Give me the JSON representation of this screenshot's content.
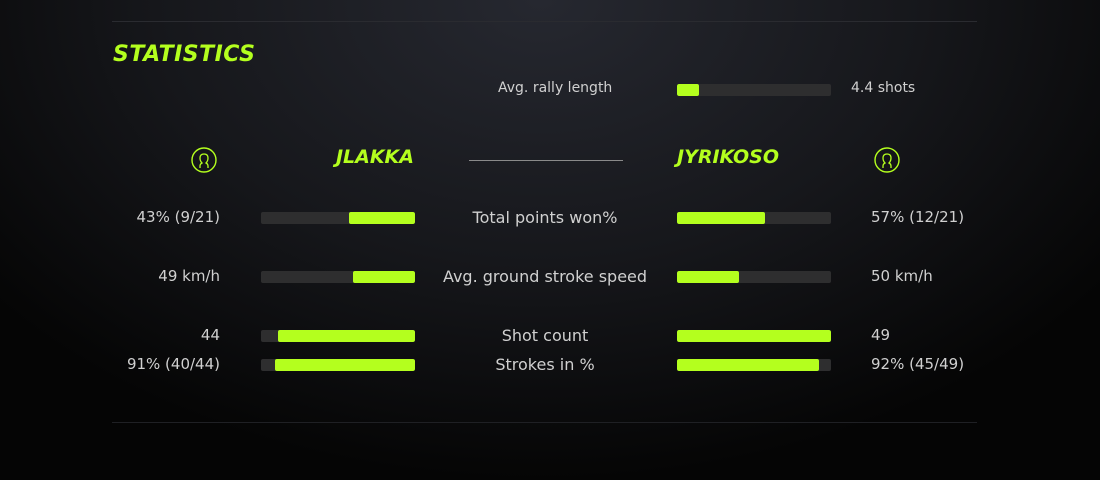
{
  "title": "STATISTICS",
  "accent": "#b4ff1e",
  "rally": {
    "label": "Avg. rally length",
    "value": "4.4 shots",
    "fraction": 0.14
  },
  "players": {
    "left": {
      "name": "JLAKKA",
      "icon": "user-circle-icon"
    },
    "right": {
      "name": "JYRIKOSO",
      "icon": "user-circle-icon"
    }
  },
  "stats": [
    {
      "label": "Total points won%",
      "left": "43% (9/21)",
      "right": "57% (12/21)",
      "left_fraction": 0.43,
      "right_fraction": 0.57
    },
    {
      "label": "Avg. ground stroke speed",
      "left": "49 km/h",
      "right": "50 km/h",
      "left_fraction": 0.4,
      "right_fraction": 0.4
    },
    {
      "label": "Shot count",
      "left": "44",
      "right": "49",
      "left_fraction": 0.89,
      "right_fraction": 1.0
    },
    {
      "label": "Strokes in %",
      "left": "91% (40/44)",
      "right": "92% (45/49)",
      "left_fraction": 0.91,
      "right_fraction": 0.92
    }
  ]
}
